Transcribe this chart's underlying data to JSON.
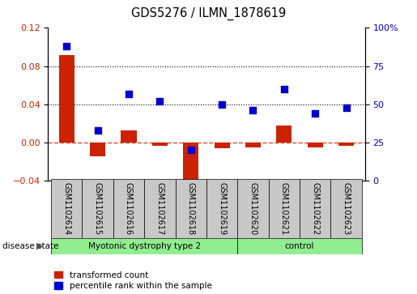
{
  "title": "GDS5276 / ILMN_1878619",
  "categories": [
    "GSM1102614",
    "GSM1102615",
    "GSM1102616",
    "GSM1102617",
    "GSM1102618",
    "GSM1102619",
    "GSM1102620",
    "GSM1102621",
    "GSM1102622",
    "GSM1102623"
  ],
  "transformed_count": [
    0.092,
    -0.014,
    0.013,
    -0.003,
    -0.043,
    -0.006,
    -0.005,
    0.018,
    -0.005,
    -0.003
  ],
  "percentile_rank": [
    88,
    33,
    57,
    52,
    20,
    50,
    46,
    60,
    44,
    48
  ],
  "group1_label": "Myotonic dystrophy type 2",
  "group1_count": 6,
  "group2_label": "control",
  "group2_count": 4,
  "green_color": "#90EE90",
  "grey_color": "#C8C8C8",
  "red_color": "#CC2200",
  "blue_color": "#0000CC",
  "ylim_left": [
    -0.04,
    0.12
  ],
  "ylim_right": [
    0,
    100
  ],
  "yticks_left": [
    -0.04,
    0.0,
    0.04,
    0.08,
    0.12
  ],
  "yticks_right": [
    0,
    25,
    50,
    75,
    100
  ],
  "hline_dotted": [
    0.04,
    0.08
  ],
  "dashed_line_y": 0.0,
  "bar_width": 0.5,
  "marker_size": 28,
  "label_transformed": "transformed count",
  "label_percentile": "percentile rank within the sample",
  "disease_state_label": "disease state"
}
